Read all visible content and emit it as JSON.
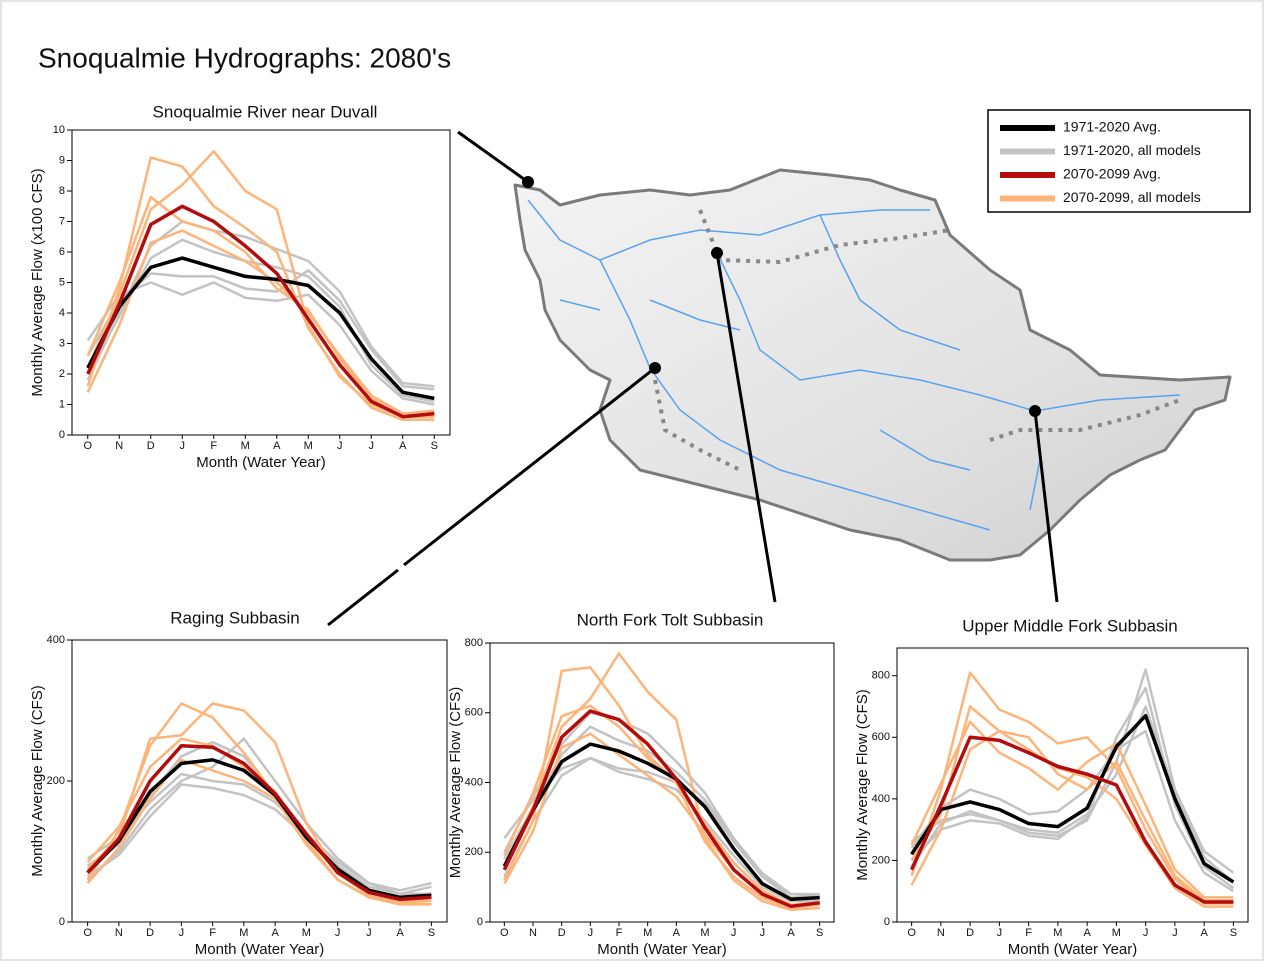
{
  "title": "Snoqualmie Hydrographs: 2080's",
  "chart_data": [
    {
      "type": "line",
      "title": "Snoqualmie River near Duvall",
      "xlabel": "Month (Water Year)",
      "ylabel": "Monthly Average Flow (x100 CFS)",
      "categories": [
        "O",
        "N",
        "D",
        "J",
        "F",
        "M",
        "A",
        "M",
        "J",
        "J",
        "A",
        "S"
      ],
      "ylim": [
        0,
        10
      ],
      "yticks": [
        0,
        1,
        2,
        3,
        4,
        5,
        6,
        7,
        8,
        9,
        10
      ],
      "series": [
        {
          "name": "1971-2020 Avg.",
          "color": "#000000",
          "values": [
            2.2,
            4.2,
            5.5,
            5.8,
            5.5,
            5.2,
            5.1,
            4.9,
            4.0,
            2.5,
            1.4,
            1.2
          ]
        },
        {
          "name": "1971-2020, all models",
          "color": "#c3c3c3",
          "values": [
            2.6,
            4.4,
            5.3,
            5.2,
            5.2,
            4.8,
            4.7,
            5.4,
            4.4,
            2.8,
            1.6,
            1.5
          ]
        },
        {
          "name": "1971-2020, all models",
          "color": "#c3c3c3",
          "values": [
            2.0,
            3.9,
            5.8,
            6.4,
            6.0,
            5.7,
            5.5,
            5.2,
            4.2,
            2.3,
            1.3,
            1.1
          ]
        },
        {
          "name": "1971-2020, all models",
          "color": "#c3c3c3",
          "values": [
            3.1,
            4.6,
            5.0,
            4.6,
            5.0,
            4.5,
            4.4,
            4.6,
            3.6,
            2.1,
            1.2,
            1.0
          ]
        },
        {
          "name": "1971-2020, all models",
          "color": "#c3c3c3",
          "values": [
            1.8,
            4.0,
            6.2,
            7.0,
            6.7,
            6.5,
            6.1,
            5.7,
            4.7,
            2.9,
            1.7,
            1.6
          ]
        },
        {
          "name": "2070-2099 Avg.",
          "color": "#b40c0c",
          "values": [
            2.0,
            4.3,
            6.9,
            7.5,
            7.0,
            6.2,
            5.3,
            3.8,
            2.3,
            1.1,
            0.6,
            0.7
          ]
        },
        {
          "name": "2070-2099, all models",
          "color": "#fdb479",
          "values": [
            1.6,
            4.8,
            9.1,
            8.8,
            7.5,
            6.8,
            6.0,
            3.5,
            2.0,
            0.9,
            0.5,
            0.5
          ]
        },
        {
          "name": "2070-2099, all models",
          "color": "#fdb479",
          "values": [
            2.2,
            4.6,
            7.4,
            8.2,
            9.3,
            8.0,
            7.4,
            3.6,
            1.9,
            1.0,
            0.6,
            0.6
          ]
        },
        {
          "name": "2070-2099, all models",
          "color": "#fdb479",
          "values": [
            1.4,
            3.6,
            6.3,
            6.7,
            6.2,
            5.7,
            5.0,
            4.0,
            2.6,
            1.3,
            0.7,
            0.8
          ]
        },
        {
          "name": "2070-2099, all models",
          "color": "#fdb479",
          "values": [
            2.6,
            5.0,
            7.8,
            7.0,
            6.7,
            6.0,
            4.8,
            4.1,
            2.5,
            1.2,
            0.6,
            0.7
          ]
        }
      ]
    },
    {
      "type": "line",
      "title": "Raging Subbasin",
      "xlabel": "Month (Water Year)",
      "ylabel": "Monthly Average Flow (CFS)",
      "categories": [
        "O",
        "N",
        "D",
        "J",
        "F",
        "M",
        "A",
        "M",
        "J",
        "J",
        "A",
        "S"
      ],
      "ylim": [
        0,
        400
      ],
      "yticks": [
        0,
        200,
        400
      ],
      "series": [
        {
          "name": "1971-2020 Avg.",
          "color": "#000000",
          "values": [
            70,
            115,
            185,
            225,
            230,
            215,
            180,
            120,
            75,
            45,
            35,
            38
          ]
        },
        {
          "name": "1971-2020, all models",
          "color": "#c3c3c3",
          "values": [
            90,
            120,
            170,
            210,
            200,
            195,
            170,
            125,
            85,
            55,
            45,
            55
          ]
        },
        {
          "name": "1971-2020, all models",
          "color": "#c3c3c3",
          "values": [
            60,
            100,
            160,
            200,
            220,
            260,
            200,
            140,
            90,
            55,
            40,
            40
          ]
        },
        {
          "name": "1971-2020, all models",
          "color": "#c3c3c3",
          "values": [
            80,
            110,
            180,
            235,
            255,
            235,
            180,
            125,
            80,
            50,
            40,
            50
          ]
        },
        {
          "name": "1971-2020, all models",
          "color": "#c3c3c3",
          "values": [
            65,
            95,
            150,
            195,
            190,
            180,
            160,
            120,
            80,
            50,
            40,
            40
          ]
        },
        {
          "name": "2070-2099 Avg.",
          "color": "#b40c0c",
          "values": [
            70,
            118,
            200,
            250,
            248,
            225,
            182,
            125,
            70,
            42,
            32,
            35
          ]
        },
        {
          "name": "2070-2099, all models",
          "color": "#fdb479",
          "values": [
            60,
            130,
            250,
            310,
            290,
            240,
            180,
            115,
            60,
            35,
            25,
            25
          ]
        },
        {
          "name": "2070-2099, all models",
          "color": "#fdb479",
          "values": [
            75,
            120,
            260,
            265,
            310,
            300,
            255,
            140,
            70,
            40,
            30,
            30
          ]
        },
        {
          "name": "2070-2099, all models",
          "color": "#fdb479",
          "values": [
            55,
            105,
            175,
            230,
            215,
            200,
            175,
            110,
            60,
            35,
            28,
            25
          ]
        },
        {
          "name": "2070-2099, all models",
          "color": "#fdb479",
          "values": [
            85,
            135,
            220,
            260,
            250,
            220,
            185,
            120,
            70,
            38,
            30,
            30
          ]
        }
      ]
    },
    {
      "type": "line",
      "title": "North Fork Tolt Subbasin",
      "xlabel": "Month (Water Year)",
      "ylabel": "Monthly Average Flow (CFS)",
      "categories": [
        "O",
        "N",
        "D",
        "J",
        "F",
        "M",
        "A",
        "M",
        "J",
        "J",
        "A",
        "S"
      ],
      "ylim": [
        0,
        800
      ],
      "yticks": [
        0,
        200,
        400,
        600,
        800
      ],
      "series": [
        {
          "name": "1971-2020 Avg.",
          "color": "#000000",
          "values": [
            160,
            320,
            460,
            510,
            490,
            455,
            410,
            330,
            210,
            110,
            65,
            70
          ]
        },
        {
          "name": "1971-2020, all models",
          "color": "#c3c3c3",
          "values": [
            240,
            350,
            440,
            470,
            440,
            430,
            400,
            340,
            230,
            130,
            80,
            75
          ]
        },
        {
          "name": "1971-2020, all models",
          "color": "#c3c3c3",
          "values": [
            180,
            330,
            480,
            560,
            520,
            490,
            430,
            350,
            240,
            140,
            80,
            80
          ]
        },
        {
          "name": "1971-2020, all models",
          "color": "#c3c3c3",
          "values": [
            130,
            290,
            420,
            470,
            430,
            410,
            380,
            290,
            190,
            100,
            60,
            60
          ]
        },
        {
          "name": "1971-2020, all models",
          "color": "#c3c3c3",
          "values": [
            200,
            360,
            510,
            600,
            580,
            540,
            460,
            370,
            240,
            130,
            70,
            75
          ]
        },
        {
          "name": "2070-2099 Avg.",
          "color": "#b40c0c",
          "values": [
            150,
            320,
            530,
            605,
            580,
            510,
            410,
            270,
            150,
            80,
            45,
            55
          ]
        },
        {
          "name": "2070-2099, all models",
          "color": "#fdb479",
          "values": [
            120,
            290,
            720,
            730,
            620,
            480,
            400,
            230,
            130,
            70,
            40,
            50
          ]
        },
        {
          "name": "2070-2099, all models",
          "color": "#fdb479",
          "values": [
            160,
            330,
            560,
            640,
            770,
            660,
            580,
            240,
            120,
            60,
            35,
            40
          ]
        },
        {
          "name": "2070-2099, all models",
          "color": "#fdb479",
          "values": [
            110,
            260,
            500,
            540,
            480,
            420,
            360,
            250,
            150,
            80,
            45,
            50
          ]
        },
        {
          "name": "2070-2099, all models",
          "color": "#fdb479",
          "values": [
            190,
            370,
            590,
            620,
            560,
            470,
            400,
            280,
            170,
            90,
            50,
            55
          ]
        }
      ]
    },
    {
      "type": "line",
      "title": "Upper Middle Fork Subbasin",
      "xlabel": "Month (Water Year)",
      "ylabel": "Monthly Average Flow (CFS)",
      "categories": [
        "O",
        "N",
        "D",
        "J",
        "F",
        "M",
        "A",
        "M",
        "J",
        "J",
        "A",
        "S"
      ],
      "ylim": [
        0,
        890
      ],
      "yticks": [
        0,
        200,
        400,
        600,
        800
      ],
      "series": [
        {
          "name": "1971-2020 Avg.",
          "color": "#000000",
          "values": [
            220,
            365,
            390,
            365,
            320,
            310,
            370,
            570,
            670,
            400,
            190,
            130
          ]
        },
        {
          "name": "1971-2020, all models",
          "color": "#c3c3c3",
          "values": [
            260,
            330,
            350,
            330,
            290,
            280,
            330,
            520,
            820,
            430,
            230,
            160
          ]
        },
        {
          "name": "1971-2020, all models",
          "color": "#c3c3c3",
          "values": [
            200,
            300,
            330,
            320,
            280,
            270,
            340,
            600,
            760,
            380,
            180,
            110
          ]
        },
        {
          "name": "1971-2020, all models",
          "color": "#c3c3c3",
          "values": [
            240,
            370,
            430,
            400,
            350,
            360,
            430,
            560,
            620,
            330,
            160,
            100
          ]
        },
        {
          "name": "1971-2020, all models",
          "color": "#c3c3c3",
          "values": [
            180,
            320,
            360,
            330,
            300,
            290,
            350,
            480,
            700,
            420,
            210,
            130
          ]
        },
        {
          "name": "2070-2099 Avg.",
          "color": "#b40c0c",
          "values": [
            170,
            380,
            600,
            590,
            550,
            505,
            480,
            445,
            260,
            120,
            65,
            65
          ]
        },
        {
          "name": "2070-2099, all models",
          "color": "#fdb479",
          "values": [
            150,
            430,
            810,
            690,
            650,
            580,
            600,
            500,
            300,
            140,
            60,
            60
          ]
        },
        {
          "name": "2070-2099, all models",
          "color": "#fdb479",
          "values": [
            200,
            350,
            700,
            620,
            560,
            500,
            470,
            400,
            250,
            110,
            50,
            50
          ]
        },
        {
          "name": "2070-2099, all models",
          "color": "#fdb479",
          "values": [
            120,
            300,
            560,
            620,
            600,
            480,
            430,
            520,
            330,
            150,
            70,
            70
          ]
        },
        {
          "name": "2070-2099, all models",
          "color": "#fdb479",
          "values": [
            250,
            450,
            650,
            550,
            500,
            430,
            520,
            580,
            380,
            170,
            80,
            80
          ]
        }
      ]
    }
  ]
}
